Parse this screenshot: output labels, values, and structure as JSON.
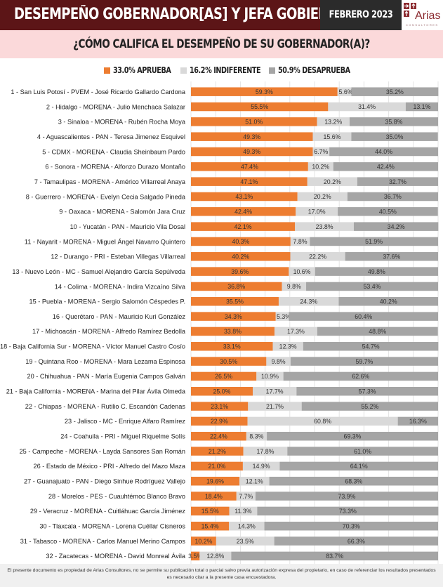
{
  "header": {
    "title": "DESEMPEÑO GOBERNADOR[AS] Y JEFA GOBIERNO",
    "date": "FEBRERO 2023",
    "logo_text": "Arias",
    "logo_subtext": "CONSULTORES"
  },
  "subtitle": "¿CÓMO CALIFICA EL DESEMPEÑO DE SU GOBERNADOR(A)?",
  "legend": [
    {
      "label": "33.0% APRUEBA",
      "color": "#ed7d31"
    },
    {
      "label": "16.2% INDIFERENTE",
      "color": "#d9d9d9"
    },
    {
      "label": "50.9% DESAPRUEBA",
      "color": "#a5a5a5"
    }
  ],
  "chart_data": {
    "type": "bar",
    "orientation": "horizontal-stacked-100",
    "title": "¿CÓMO CALIFICA EL DESEMPEÑO DE SU GOBERNADOR(A)?",
    "xlabel": "",
    "ylabel": "",
    "xlim": [
      0,
      100
    ],
    "grid": true,
    "legend_position": "top-center",
    "categories": [
      "1 - San Luis Potosí - PVEM - José Ricardo Gallardo Cardona",
      "2 - Hidalgo - MORENA - Julio Menchaca Salazar",
      "3 - Sinaloa - MORENA - Rubén Rocha Moya",
      "4 - Aguascalientes - PAN - Teresa Jimenez Esquivel",
      "5 - CDMX - MORENA - Claudia Sheinbaum Pardo",
      "6 - Sonora - MORENA - Alfonzo Durazo Montaño",
      "7 - Tamaulipas - MORENA - Américo Villarreal Anaya",
      "8 - Guerrero - MORENA - Evelyn Cecia Salgado Pineda",
      "9 - Oaxaca - MORENA - Salomón Jara Cruz",
      "10 - Yucatán - PAN - Mauricio Vila Dosal",
      "11 - Nayarit - MORENA - Miguel Ángel Navarro Quintero",
      "12 - Durango - PRI - Esteban Villegas Villarreal",
      "13 - Nuevo León - MC - Samuel Alejandro García Sepúlveda",
      "14 - Colima - MORENA - Indira Vizcaíno Silva",
      "15 - Puebla - MORENA - Sergio Salomón Céspedes P.",
      "16 - Querétaro - PAN - Mauricio Kuri González",
      "17 - Michoacán - MORENA - Alfredo Ramírez Bedolla",
      "18 - Baja California Sur - MORENA - Víctor Manuel Castro Cosío",
      "19 - Quintana Roo - MORENA - Mara Lezama Espinosa",
      "20 - Chihuahua - PAN - María Eugenia Campos Galván",
      "21 - Baja California - MORENA - Marina del Pilar Ávila Olmeda",
      "22 - Chiapas - MORENA - Rutilio C. Escandón Cadenas",
      "23 - Jalisco - MC - Enrique Alfaro Ramírez",
      "24 - Coahuila - PRI - Miguel Riquelme Solís",
      "25 - Campeche - MORENA - Layda Sansores San Román",
      "26 - Estado de México - PRI - Alfredo del Mazo Maza",
      "27 - Guanajuato - PAN - Diego Sinhue Rodríguez Vallejo",
      "28 - Morelos - PES - Cuauhtémoc Blanco Bravo",
      "29 - Veracruz - MORENA - Cuitláhuac García Jiménez",
      "30 - Tlaxcala - MORENA - Lorena Cuéllar Cisneros",
      "31 - Tabasco - MORENA - Carlos Manuel Merino Campos",
      "32 - Zacatecas - MORENA - David Monreal Ávila"
    ],
    "series": [
      {
        "name": "APRUEBA",
        "color": "#ed7d31",
        "values": [
          59.3,
          55.5,
          51.0,
          49.3,
          49.3,
          47.4,
          47.1,
          43.1,
          42.4,
          42.1,
          40.3,
          40.2,
          39.6,
          36.8,
          35.5,
          34.3,
          33.8,
          33.1,
          30.5,
          26.5,
          25.0,
          23.1,
          22.9,
          22.4,
          21.2,
          21.0,
          19.6,
          18.4,
          15.5,
          15.4,
          10.2,
          3.5
        ]
      },
      {
        "name": "INDIFERENTE",
        "color": "#d9d9d9",
        "values": [
          5.6,
          31.4,
          13.2,
          15.6,
          6.7,
          10.2,
          20.2,
          20.2,
          17.0,
          23.8,
          7.8,
          22.2,
          10.6,
          9.8,
          24.3,
          5.3,
          17.3,
          12.3,
          9.8,
          10.9,
          17.7,
          21.7,
          60.8,
          8.3,
          17.8,
          14.9,
          12.1,
          7.7,
          11.3,
          14.3,
          23.5,
          12.8
        ]
      },
      {
        "name": "DESAPRUEBA",
        "color": "#a5a5a5",
        "values": [
          35.2,
          13.1,
          35.8,
          35.0,
          44.0,
          42.4,
          32.7,
          36.7,
          40.5,
          34.2,
          51.9,
          37.6,
          49.8,
          53.4,
          40.2,
          60.4,
          48.8,
          54.7,
          59.7,
          62.6,
          57.3,
          55.2,
          16.3,
          69.3,
          61.0,
          64.1,
          68.3,
          73.9,
          73.3,
          70.3,
          66.3,
          83.7
        ]
      }
    ]
  },
  "footer": "El presente documento es propiedad de Arias Consultores, no se permite su publicación total o parcial salvo previa autorización expresa del propietario, en caso de referenciar los resultados presentados es necesario citar a la presente casa encuestadora."
}
